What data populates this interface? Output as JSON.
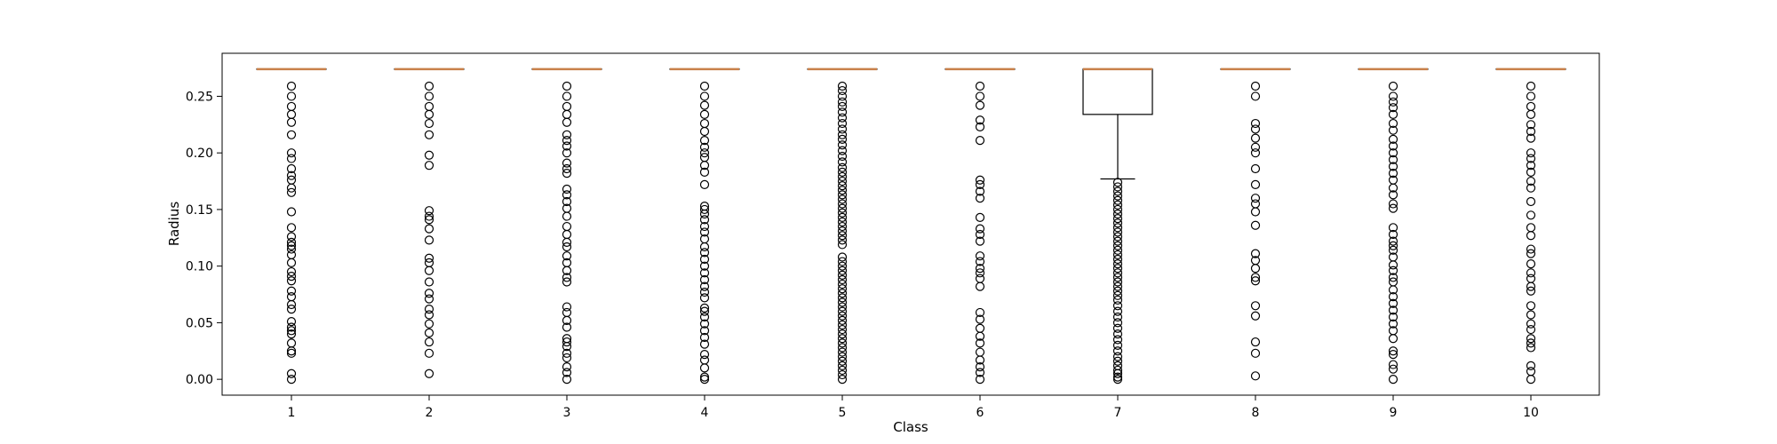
{
  "chart_data": {
    "type": "box",
    "title": "",
    "xlabel": "Class",
    "ylabel": "Radius",
    "ylim": [
      -0.014,
      0.288
    ],
    "yticks": [
      0.0,
      0.05,
      0.1,
      0.15,
      0.2,
      0.25
    ],
    "ytick_labels": [
      "0.00",
      "0.05",
      "0.10",
      "0.15",
      "0.20",
      "0.25"
    ],
    "grid": false,
    "median_color": "#c8804a",
    "box_color": "#000000",
    "categories": [
      "1",
      "2",
      "3",
      "4",
      "5",
      "6",
      "7",
      "8",
      "9",
      "10"
    ],
    "boxes": [
      {
        "label": "1",
        "q1": 0.274,
        "median": 0.274,
        "q3": 0.274,
        "whisker_low": 0.274,
        "whisker_high": 0.274,
        "outliers": [
          0.259,
          0.25,
          0.241,
          0.234,
          0.227,
          0.216,
          0.2,
          0.195,
          0.186,
          0.18,
          0.176,
          0.169,
          0.165,
          0.148,
          0.134,
          0.126,
          0.121,
          0.118,
          0.115,
          0.11,
          0.103,
          0.095,
          0.091,
          0.087,
          0.078,
          0.073,
          0.066,
          0.062,
          0.051,
          0.046,
          0.043,
          0.04,
          0.032,
          0.025,
          0.023,
          0.005,
          0.0
        ]
      },
      {
        "label": "2",
        "q1": 0.274,
        "median": 0.274,
        "q3": 0.274,
        "whisker_low": 0.274,
        "whisker_high": 0.274,
        "outliers": [
          0.259,
          0.25,
          0.241,
          0.234,
          0.226,
          0.216,
          0.198,
          0.189,
          0.149,
          0.144,
          0.141,
          0.133,
          0.123,
          0.107,
          0.103,
          0.096,
          0.086,
          0.076,
          0.071,
          0.062,
          0.057,
          0.049,
          0.041,
          0.033,
          0.023,
          0.005
        ]
      },
      {
        "label": "3",
        "q1": 0.274,
        "median": 0.274,
        "q3": 0.274,
        "whisker_low": 0.274,
        "whisker_high": 0.274,
        "outliers": [
          0.259,
          0.25,
          0.241,
          0.234,
          0.227,
          0.216,
          0.211,
          0.206,
          0.2,
          0.191,
          0.186,
          0.182,
          0.168,
          0.163,
          0.157,
          0.151,
          0.144,
          0.135,
          0.128,
          0.121,
          0.117,
          0.109,
          0.103,
          0.096,
          0.09,
          0.086,
          0.064,
          0.059,
          0.052,
          0.046,
          0.036,
          0.033,
          0.029,
          0.023,
          0.019,
          0.011,
          0.006,
          0.0
        ]
      },
      {
        "label": "4",
        "q1": 0.274,
        "median": 0.274,
        "q3": 0.274,
        "whisker_low": 0.274,
        "whisker_high": 0.274,
        "outliers": [
          0.259,
          0.25,
          0.242,
          0.234,
          0.226,
          0.219,
          0.211,
          0.205,
          0.2,
          0.196,
          0.189,
          0.183,
          0.172,
          0.153,
          0.15,
          0.146,
          0.141,
          0.135,
          0.13,
          0.124,
          0.117,
          0.112,
          0.106,
          0.1,
          0.094,
          0.088,
          0.082,
          0.077,
          0.072,
          0.063,
          0.06,
          0.055,
          0.049,
          0.043,
          0.037,
          0.031,
          0.022,
          0.017,
          0.01,
          0.002,
          0.0
        ]
      },
      {
        "label": "5",
        "q1": 0.274,
        "median": 0.274,
        "q3": 0.274,
        "whisker_low": 0.274,
        "whisker_high": 0.274,
        "outliers": [
          0.259,
          0.255,
          0.25,
          0.245,
          0.241,
          0.236,
          0.231,
          0.226,
          0.221,
          0.216,
          0.212,
          0.207,
          0.202,
          0.197,
          0.192,
          0.187,
          0.183,
          0.179,
          0.175,
          0.171,
          0.167,
          0.163,
          0.159,
          0.155,
          0.151,
          0.147,
          0.143,
          0.139,
          0.135,
          0.131,
          0.127,
          0.123,
          0.119,
          0.108,
          0.104,
          0.1,
          0.096,
          0.092,
          0.088,
          0.084,
          0.08,
          0.076,
          0.072,
          0.068,
          0.064,
          0.06,
          0.056,
          0.052,
          0.048,
          0.044,
          0.04,
          0.036,
          0.032,
          0.028,
          0.024,
          0.02,
          0.016,
          0.012,
          0.008,
          0.004,
          0.0
        ]
      },
      {
        "label": "6",
        "q1": 0.274,
        "median": 0.274,
        "q3": 0.274,
        "whisker_low": 0.274,
        "whisker_high": 0.274,
        "outliers": [
          0.259,
          0.25,
          0.242,
          0.229,
          0.223,
          0.211,
          0.176,
          0.172,
          0.166,
          0.16,
          0.143,
          0.133,
          0.128,
          0.122,
          0.109,
          0.104,
          0.098,
          0.094,
          0.089,
          0.082,
          0.059,
          0.053,
          0.045,
          0.038,
          0.032,
          0.024,
          0.017,
          0.011,
          0.006,
          0.0
        ]
      },
      {
        "label": "7",
        "q1": 0.234,
        "median": 0.274,
        "q3": 0.274,
        "whisker_low": 0.177,
        "whisker_high": 0.274,
        "outliers": [
          0.174,
          0.17,
          0.166,
          0.162,
          0.158,
          0.154,
          0.15,
          0.146,
          0.142,
          0.138,
          0.134,
          0.13,
          0.126,
          0.122,
          0.118,
          0.114,
          0.11,
          0.106,
          0.102,
          0.098,
          0.094,
          0.09,
          0.086,
          0.082,
          0.078,
          0.074,
          0.07,
          0.065,
          0.06,
          0.055,
          0.05,
          0.045,
          0.04,
          0.035,
          0.03,
          0.025,
          0.02,
          0.016,
          0.012,
          0.008,
          0.005,
          0.002,
          0.0
        ]
      },
      {
        "label": "8",
        "q1": 0.274,
        "median": 0.274,
        "q3": 0.274,
        "whisker_low": 0.274,
        "whisker_high": 0.274,
        "outliers": [
          0.259,
          0.25,
          0.226,
          0.221,
          0.213,
          0.205,
          0.2,
          0.186,
          0.172,
          0.16,
          0.155,
          0.148,
          0.136,
          0.111,
          0.105,
          0.098,
          0.09,
          0.087,
          0.065,
          0.056,
          0.033,
          0.023,
          0.003
        ]
      },
      {
        "label": "9",
        "q1": 0.274,
        "median": 0.274,
        "q3": 0.274,
        "whisker_low": 0.274,
        "whisker_high": 0.274,
        "outliers": [
          0.259,
          0.25,
          0.245,
          0.24,
          0.234,
          0.226,
          0.22,
          0.212,
          0.206,
          0.2,
          0.194,
          0.188,
          0.182,
          0.176,
          0.169,
          0.163,
          0.155,
          0.151,
          0.134,
          0.128,
          0.122,
          0.118,
          0.114,
          0.108,
          0.101,
          0.096,
          0.09,
          0.086,
          0.079,
          0.073,
          0.067,
          0.061,
          0.055,
          0.049,
          0.043,
          0.036,
          0.025,
          0.022,
          0.013,
          0.009,
          0.0
        ]
      },
      {
        "label": "10",
        "q1": 0.274,
        "median": 0.274,
        "q3": 0.274,
        "whisker_low": 0.274,
        "whisker_high": 0.274,
        "outliers": [
          0.259,
          0.25,
          0.241,
          0.234,
          0.225,
          0.219,
          0.213,
          0.2,
          0.195,
          0.189,
          0.183,
          0.175,
          0.169,
          0.157,
          0.145,
          0.134,
          0.127,
          0.115,
          0.111,
          0.102,
          0.094,
          0.089,
          0.082,
          0.078,
          0.065,
          0.057,
          0.049,
          0.044,
          0.036,
          0.032,
          0.028,
          0.012,
          0.007,
          0.0
        ]
      }
    ]
  }
}
